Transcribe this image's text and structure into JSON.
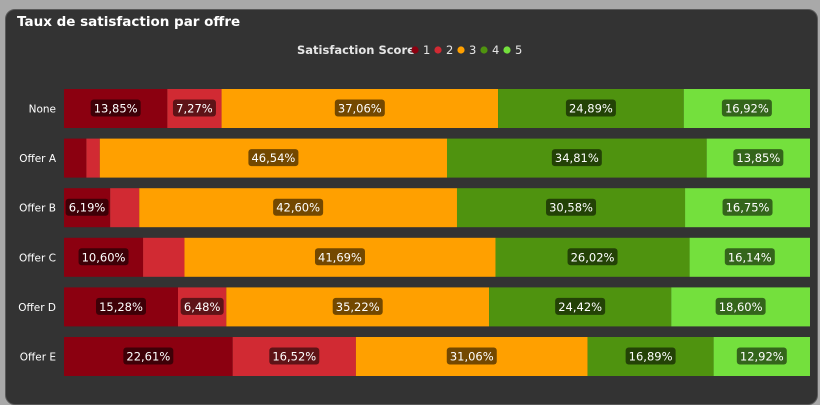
{
  "title": "Taux de satisfaction par offre",
  "chart_data": {
    "type": "bar",
    "orientation": "horizontal",
    "stacked": "100%",
    "title": "Taux de satisfaction par offre",
    "legend_title": "Satisfaction Score",
    "legend_position": "top",
    "categories": [
      "None",
      "Offer A",
      "Offer B",
      "Offer C",
      "Offer D",
      "Offer E"
    ],
    "series": [
      {
        "name": "1",
        "color": "#8b0010",
        "values": [
          13.85,
          3.0,
          6.19,
          10.6,
          15.28,
          22.61
        ],
        "labels": [
          "13,85%",
          "",
          "6,19%",
          "10,60%",
          "15,28%",
          "22,61%"
        ]
      },
      {
        "name": "2",
        "color": "#d12a33",
        "values": [
          7.27,
          1.8,
          3.9,
          5.55,
          6.48,
          16.52
        ],
        "labels": [
          "7,27%",
          "",
          "",
          "",
          "6,48%",
          "16,52%"
        ]
      },
      {
        "name": "3",
        "color": "#ffa000",
        "values": [
          37.06,
          46.54,
          42.6,
          41.69,
          35.22,
          31.06
        ],
        "labels": [
          "37,06%",
          "46,54%",
          "42,60%",
          "41,69%",
          "35,22%",
          "31,06%"
        ]
      },
      {
        "name": "4",
        "color": "#4f930f",
        "values": [
          24.89,
          34.81,
          30.58,
          26.02,
          24.42,
          16.89
        ],
        "labels": [
          "24,89%",
          "34,81%",
          "30,58%",
          "26,02%",
          "24,42%",
          "16,89%"
        ]
      },
      {
        "name": "5",
        "color": "#74e03d",
        "values": [
          16.92,
          13.85,
          16.75,
          16.14,
          18.6,
          12.92
        ],
        "labels": [
          "16,92%",
          "13,85%",
          "16,75%",
          "16,14%",
          "18,60%",
          "12,92%"
        ]
      }
    ],
    "xlim": [
      0,
      100
    ],
    "grid": false
  }
}
